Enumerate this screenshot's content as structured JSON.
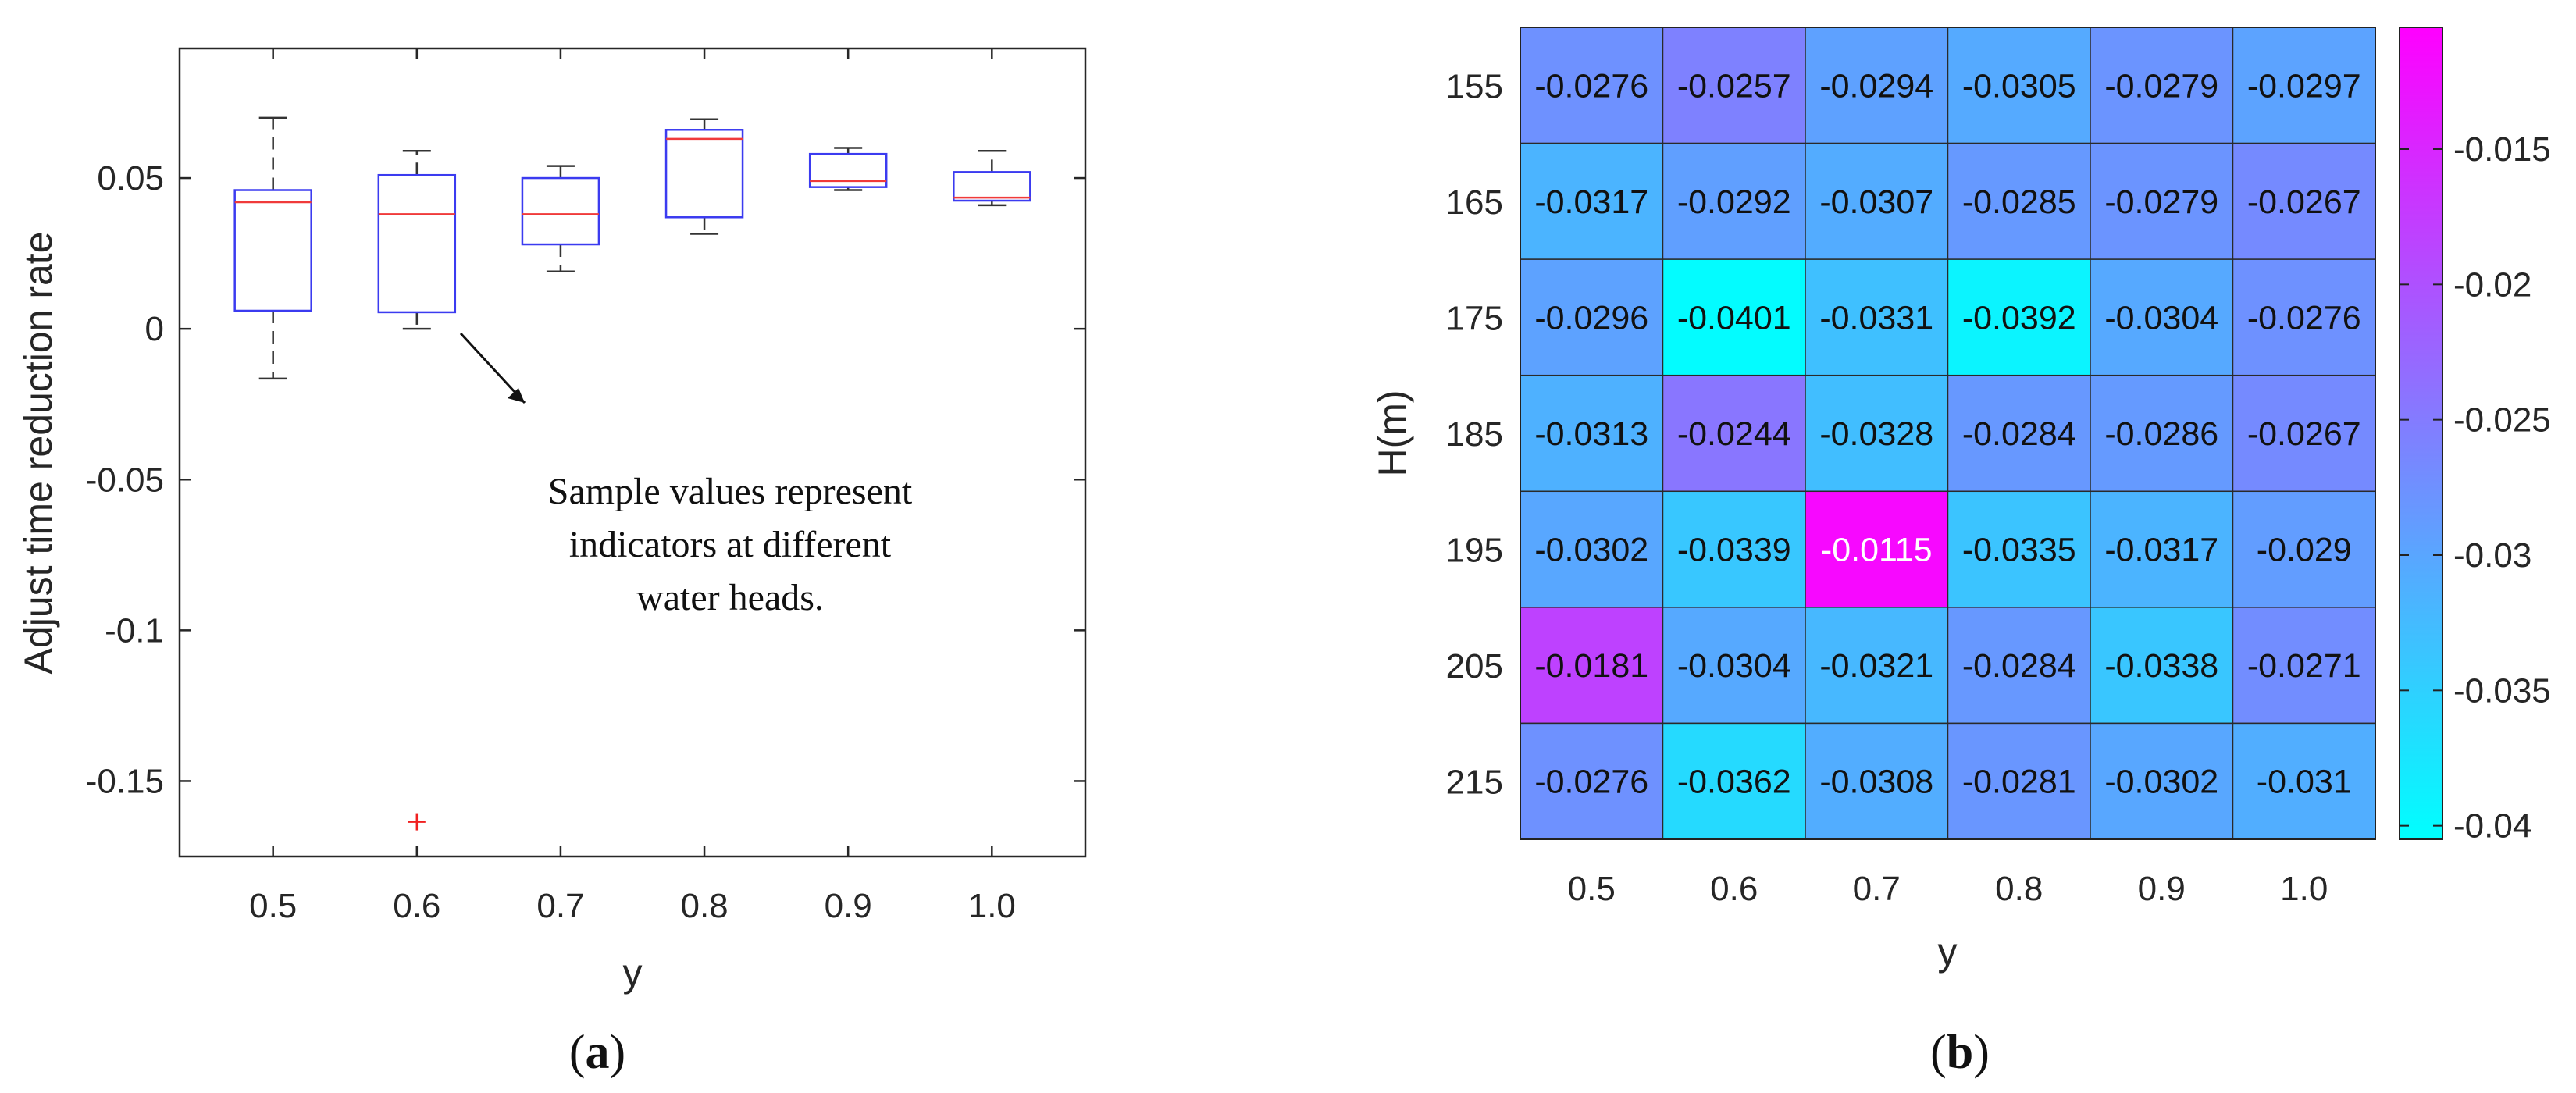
{
  "chart_data": [
    {
      "type": "box",
      "panel_label": "a",
      "xlabel": "y",
      "ylabel": "Adjust time reduction rate",
      "categories": [
        "0.5",
        "0.6",
        "0.7",
        "0.8",
        "0.9",
        "1.0"
      ],
      "ylim": [
        -0.175,
        0.093
      ],
      "yticks": [
        "0.05",
        "0",
        "-0.05",
        "-0.1",
        "-0.15"
      ],
      "ytick_values": [
        0.05,
        0,
        -0.05,
        -0.1,
        -0.15
      ],
      "boxes": [
        {
          "whisker_low": -0.0165,
          "q1": 0.006,
          "median": 0.042,
          "q3": 0.046,
          "whisker_high": 0.07,
          "outliers": []
        },
        {
          "whisker_low": 0.0,
          "q1": 0.0055,
          "median": 0.038,
          "q3": 0.051,
          "whisker_high": 0.059,
          "outliers": [
            -0.1635
          ]
        },
        {
          "whisker_low": 0.019,
          "q1": 0.028,
          "median": 0.038,
          "q3": 0.05,
          "whisker_high": 0.054,
          "outliers": []
        },
        {
          "whisker_low": 0.0315,
          "q1": 0.037,
          "median": 0.063,
          "q3": 0.066,
          "whisker_high": 0.0695,
          "outliers": []
        },
        {
          "whisker_low": 0.046,
          "q1": 0.047,
          "median": 0.049,
          "q3": 0.058,
          "whisker_high": 0.06,
          "outliers": []
        },
        {
          "whisker_low": 0.041,
          "q1": 0.0425,
          "median": 0.0435,
          "q3": 0.052,
          "whisker_high": 0.059,
          "outliers": []
        }
      ],
      "annotation": [
        "Sample values represent",
        "indicators at different",
        "water heads."
      ],
      "colors": {
        "box": "#3b3bf0",
        "median": "#f03a3a",
        "whisker": "#333333",
        "outlier": "#f02020"
      }
    },
    {
      "type": "heatmap",
      "panel_label": "b",
      "xlabel": "y",
      "ylabel": "H(m)",
      "x_categories": [
        "0.5",
        "0.6",
        "0.7",
        "0.8",
        "0.9",
        "1.0"
      ],
      "y_categories": [
        "155",
        "165",
        "175",
        "185",
        "195",
        "205",
        "215"
      ],
      "values": [
        [
          -0.0276,
          -0.0257,
          -0.0294,
          -0.0305,
          -0.0279,
          -0.0297
        ],
        [
          -0.0317,
          -0.0292,
          -0.0307,
          -0.0285,
          -0.0279,
          -0.0267
        ],
        [
          -0.0296,
          -0.0401,
          -0.0331,
          -0.0392,
          -0.0304,
          -0.0276
        ],
        [
          -0.0313,
          -0.0244,
          -0.0328,
          -0.0284,
          -0.0286,
          -0.0267
        ],
        [
          -0.0302,
          -0.0339,
          -0.0115,
          -0.0335,
          -0.0317,
          -0.029
        ],
        [
          -0.0181,
          -0.0304,
          -0.0321,
          -0.0284,
          -0.0338,
          -0.0271
        ],
        [
          -0.0276,
          -0.0362,
          -0.0308,
          -0.0281,
          -0.0302,
          -0.031
        ]
      ],
      "labels": [
        [
          "-0.0276",
          "-0.0257",
          "-0.0294",
          "-0.0305",
          "-0.0279",
          "-0.0297"
        ],
        [
          "-0.0317",
          "-0.0292",
          "-0.0307",
          "-0.0285",
          "-0.0279",
          "-0.0267"
        ],
        [
          "-0.0296",
          "-0.0401",
          "-0.0331",
          "-0.0392",
          "-0.0304",
          "-0.0276"
        ],
        [
          "-0.0313",
          "-0.0244",
          "-0.0328",
          "-0.0284",
          "-0.0286",
          "-0.0267"
        ],
        [
          "-0.0302",
          "-0.0339",
          "-0.0115",
          "-0.0335",
          "-0.0317",
          "-0.029"
        ],
        [
          "-0.0181",
          "-0.0304",
          "-0.0321",
          "-0.0284",
          "-0.0338",
          "-0.0271"
        ],
        [
          "-0.0276",
          "-0.0362",
          "-0.0308",
          "-0.0281",
          "-0.0302",
          "-0.031"
        ]
      ],
      "colorbar": {
        "ticks": [
          "-0.015",
          "-0.02",
          "-0.025",
          "-0.03",
          "-0.035",
          "-0.04"
        ],
        "tick_values": [
          -0.015,
          -0.02,
          -0.025,
          -0.03,
          -0.035,
          -0.04
        ],
        "range": [
          -0.0405,
          -0.0105
        ],
        "colormap": [
          "#00ffff",
          "#ff00ff"
        ]
      }
    }
  ]
}
